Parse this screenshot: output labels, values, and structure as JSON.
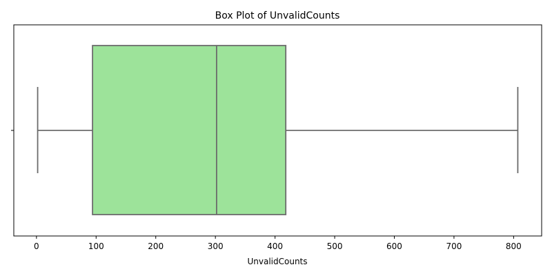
{
  "chart_data": {
    "type": "box",
    "title": "Box Plot of UnvalidCounts",
    "xlabel": "UnvalidCounts",
    "ylabel": "",
    "xlim": [
      -38,
      847
    ],
    "xticks": [
      0,
      100,
      200,
      300,
      400,
      500,
      600,
      700,
      800
    ],
    "xtick_labels": [
      "0",
      "100",
      "200",
      "300",
      "400",
      "500",
      "600",
      "700",
      "800"
    ],
    "box": {
      "whisker_low": 2,
      "q1": 94,
      "median": 302,
      "q3": 418,
      "whisker_high": 807
    },
    "grid": false,
    "colors": {
      "box_fill": "#9de39a",
      "lines": "#6b6b6b",
      "axes": "#000000"
    }
  }
}
